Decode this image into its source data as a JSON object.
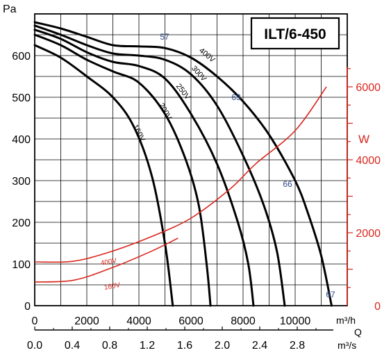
{
  "chart_data": {
    "type": "line",
    "title": "ILT/6-450",
    "y_left": {
      "label": "Pa",
      "ticks": [
        0,
        100,
        200,
        300,
        400,
        500,
        600
      ],
      "ylim": [
        0,
        700
      ]
    },
    "y_right": {
      "label": "W",
      "ticks": [
        0,
        2000,
        4000,
        6000
      ],
      "ylim": [
        0,
        8000
      ],
      "color": "#d9261c"
    },
    "x_primary": {
      "unit": "m³/h",
      "ticks": [
        0,
        2000,
        4000,
        6000,
        8000,
        10000
      ],
      "xlim": [
        0,
        12000
      ]
    },
    "x_secondary": {
      "name": "Q",
      "unit": "m³/s",
      "ticks": [
        "0.0",
        "0.4",
        "0.8",
        "1.2",
        "1.6",
        "2.0",
        "2.4",
        "2.8"
      ]
    },
    "grid": true,
    "pressure_series": [
      {
        "name": "400V",
        "points": [
          [
            0,
            680
          ],
          [
            1000,
            665
          ],
          [
            2000,
            645
          ],
          [
            3000,
            625
          ],
          [
            4000,
            622
          ],
          [
            5000,
            618
          ],
          [
            6000,
            595
          ],
          [
            7000,
            550
          ],
          [
            8000,
            490
          ],
          [
            9000,
            410
          ],
          [
            10000,
            300
          ],
          [
            10500,
            220
          ],
          [
            11000,
            120
          ],
          [
            11400,
            0
          ]
        ]
      },
      {
        "name": "300V",
        "points": [
          [
            0,
            672
          ],
          [
            1000,
            650
          ],
          [
            2000,
            625
          ],
          [
            3000,
            605
          ],
          [
            4000,
            600
          ],
          [
            5000,
            590
          ],
          [
            6000,
            555
          ],
          [
            7000,
            480
          ],
          [
            8000,
            360
          ],
          [
            8800,
            240
          ],
          [
            9300,
            130
          ],
          [
            9600,
            0
          ]
        ]
      },
      {
        "name": "250V",
        "points": [
          [
            0,
            662
          ],
          [
            1000,
            640
          ],
          [
            2000,
            608
          ],
          [
            3000,
            585
          ],
          [
            4000,
            575
          ],
          [
            5000,
            545
          ],
          [
            6000,
            460
          ],
          [
            7000,
            340
          ],
          [
            7800,
            200
          ],
          [
            8200,
            100
          ],
          [
            8400,
            0
          ]
        ]
      },
      {
        "name": "200V",
        "points": [
          [
            0,
            650
          ],
          [
            1000,
            625
          ],
          [
            2000,
            590
          ],
          [
            3000,
            562
          ],
          [
            4000,
            535
          ],
          [
            5000,
            460
          ],
          [
            5800,
            350
          ],
          [
            6300,
            240
          ],
          [
            6600,
            100
          ],
          [
            6750,
            0
          ]
        ]
      },
      {
        "name": "160V",
        "points": [
          [
            0,
            625
          ],
          [
            1000,
            595
          ],
          [
            2000,
            550
          ],
          [
            3000,
            500
          ],
          [
            3800,
            430
          ],
          [
            4500,
            310
          ],
          [
            5000,
            150
          ],
          [
            5300,
            0
          ]
        ]
      }
    ],
    "power_series": [
      {
        "name": "400V",
        "points": [
          [
            0,
            1200
          ],
          [
            1500,
            1220
          ],
          [
            3000,
            1500
          ],
          [
            4500,
            1900
          ],
          [
            6000,
            2400
          ],
          [
            7500,
            3200
          ],
          [
            8500,
            3900
          ],
          [
            10000,
            4800
          ],
          [
            11200,
            6000
          ]
        ]
      },
      {
        "name": "160V",
        "points": [
          [
            0,
            650
          ],
          [
            1500,
            700
          ],
          [
            3000,
            1050
          ],
          [
            4500,
            1500
          ],
          [
            5500,
            1850
          ]
        ]
      }
    ],
    "annotations": [
      "57",
      "63",
      "66",
      "67"
    ]
  }
}
